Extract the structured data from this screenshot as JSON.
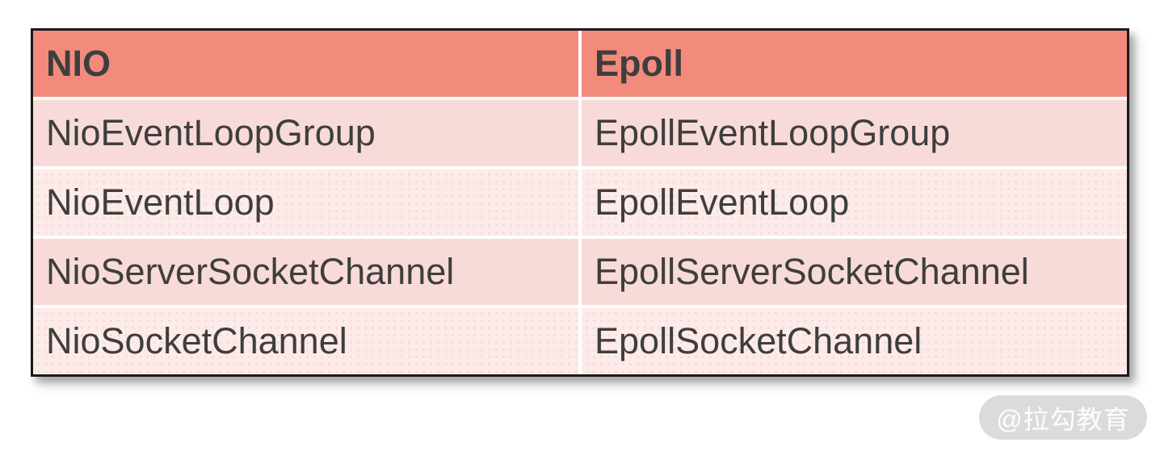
{
  "table": {
    "headers": [
      "NIO",
      "Epoll"
    ],
    "rows": [
      [
        "NioEventLoopGroup",
        "EpollEventLoopGroup"
      ],
      [
        "NioEventLoop",
        "EpollEventLoop"
      ],
      [
        "NioServerSocketChannel",
        "EpollServerSocketChannel"
      ],
      [
        "NioSocketChannel",
        "EpollSocketChannel"
      ]
    ]
  },
  "watermark": {
    "text": "@拉勾教育"
  },
  "colors": {
    "header_bg": "#F28B7C",
    "row_odd_bg": "#F8DBD8",
    "row_even_bg": "#FCEBE9",
    "row_even_dot": "#F3CFCC",
    "text_color": "#3E3E3E",
    "border_color": "#1A1A1A",
    "divider_color": "#FFFFFF",
    "watermark_bg": "#DBDBDB",
    "watermark_text": "#FDFDFD"
  }
}
